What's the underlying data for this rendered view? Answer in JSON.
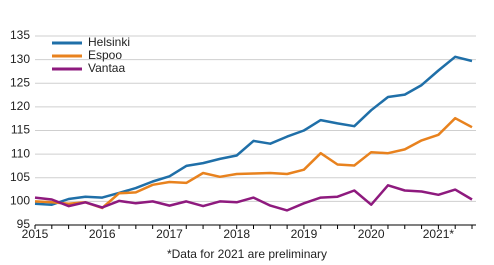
{
  "chart_data": {
    "type": "line",
    "categories": [
      "2015",
      null,
      null,
      null,
      "2016",
      null,
      null,
      null,
      "2017",
      null,
      null,
      null,
      "2018",
      null,
      null,
      null,
      "2019",
      null,
      null,
      null,
      "2020",
      null,
      null,
      null,
      "2021*",
      null,
      null
    ],
    "series": [
      {
        "name": "Helsinki",
        "color": "#1f6fa8",
        "values": [
          99.5,
          99.3,
          100.5,
          101,
          100.8,
          101.8,
          102.8,
          104.2,
          105.3,
          107.5,
          108.1,
          109,
          109.7,
          112.8,
          112.2,
          113.7,
          115,
          117.2,
          116.5,
          115.9,
          119.3,
          122.1,
          122.6,
          124.6,
          127.7,
          130.6,
          129.7
        ]
      },
      {
        "name": "Espoo",
        "color": "#e8821e",
        "values": [
          100,
          99.8,
          99.5,
          99.8,
          98.6,
          101.7,
          101.9,
          103.5,
          104.1,
          103.9,
          106,
          105.2,
          105.8,
          105.9,
          106,
          105.8,
          106.7,
          110.2,
          107.8,
          107.6,
          110.4,
          110.2,
          111,
          112.9,
          114.1,
          117.6,
          115.7
        ]
      },
      {
        "name": "Vantaa",
        "color": "#8e1a7e",
        "values": [
          100.8,
          100.4,
          99,
          99.8,
          98.7,
          100.1,
          99.6,
          100,
          99.1,
          100,
          99,
          100,
          99.8,
          100.8,
          99.1,
          98.1,
          99.6,
          100.8,
          101,
          102.3,
          99.3,
          103.4,
          102.3,
          102.1,
          101.4,
          102.5,
          100.4
        ]
      }
    ],
    "ylim": [
      95,
      135
    ],
    "yticks": [
      95,
      100,
      105,
      110,
      115,
      120,
      125,
      130,
      135
    ],
    "grid": true,
    "legend": "top-left",
    "note": "*Data for 2021 are preliminary"
  }
}
